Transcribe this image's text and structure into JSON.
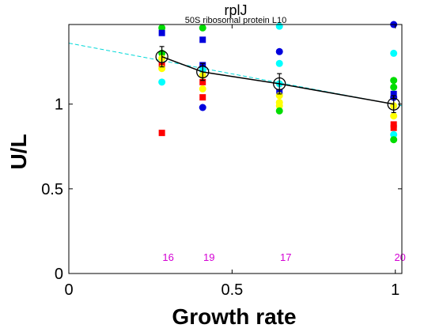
{
  "chart_data": {
    "type": "scatter",
    "title": "rplJ",
    "subtitle": "50S ribosomal protein L10",
    "xlabel": "Growth rate",
    "ylabel": "U/L",
    "xlim": [
      0,
      1.02
    ],
    "ylim": [
      0,
      1.47
    ],
    "x_ticks": [
      {
        "value": 0,
        "label": "0"
      },
      {
        "value": 0.5,
        "label": "0.5"
      },
      {
        "value": 1,
        "label": "1"
      }
    ],
    "y_ticks": [
      {
        "value": 0,
        "label": "0"
      },
      {
        "value": 0.5,
        "label": "0.5"
      },
      {
        "value": 1,
        "label": "1"
      }
    ],
    "grid": false,
    "colors": {
      "red": "#ff0000",
      "blue": "#0000dd",
      "green": "#00dd00",
      "cyan": "#00ffff",
      "yellow": "#ffff00",
      "magenta": "#d400d4",
      "trend": "#00d8d8",
      "mean_line": "#000000"
    },
    "points": [
      {
        "x": 0.285,
        "y": 1.45,
        "color": "green",
        "shape": "circle"
      },
      {
        "x": 0.285,
        "y": 1.42,
        "color": "blue",
        "shape": "square"
      },
      {
        "x": 0.285,
        "y": 1.3,
        "color": "green",
        "shape": "circle"
      },
      {
        "x": 0.285,
        "y": 1.27,
        "color": "yellow",
        "shape": "circle"
      },
      {
        "x": 0.285,
        "y": 1.23,
        "color": "red",
        "shape": "square"
      },
      {
        "x": 0.285,
        "y": 1.21,
        "color": "yellow",
        "shape": "circle"
      },
      {
        "x": 0.285,
        "y": 1.13,
        "color": "cyan",
        "shape": "circle"
      },
      {
        "x": 0.285,
        "y": 0.83,
        "color": "red",
        "shape": "square"
      },
      {
        "x": 0.41,
        "y": 1.45,
        "color": "green",
        "shape": "circle"
      },
      {
        "x": 0.41,
        "y": 1.38,
        "color": "blue",
        "shape": "square"
      },
      {
        "x": 0.41,
        "y": 1.23,
        "color": "blue",
        "shape": "square"
      },
      {
        "x": 0.41,
        "y": 1.2,
        "color": "cyan",
        "shape": "circle"
      },
      {
        "x": 0.41,
        "y": 1.17,
        "color": "yellow",
        "shape": "circle"
      },
      {
        "x": 0.41,
        "y": 1.13,
        "color": "red",
        "shape": "square"
      },
      {
        "x": 0.41,
        "y": 1.09,
        "color": "yellow",
        "shape": "circle"
      },
      {
        "x": 0.41,
        "y": 1.04,
        "color": "red",
        "shape": "square"
      },
      {
        "x": 0.41,
        "y": 0.98,
        "color": "blue",
        "shape": "circle"
      },
      {
        "x": 0.645,
        "y": 1.46,
        "color": "cyan",
        "shape": "circle"
      },
      {
        "x": 0.645,
        "y": 1.31,
        "color": "blue",
        "shape": "circle"
      },
      {
        "x": 0.645,
        "y": 1.24,
        "color": "cyan",
        "shape": "circle"
      },
      {
        "x": 0.645,
        "y": 1.12,
        "color": "cyan",
        "shape": "circle"
      },
      {
        "x": 0.645,
        "y": 1.07,
        "color": "blue",
        "shape": "square"
      },
      {
        "x": 0.645,
        "y": 1.05,
        "color": "yellow",
        "shape": "circle"
      },
      {
        "x": 0.645,
        "y": 1.01,
        "color": "yellow",
        "shape": "circle"
      },
      {
        "x": 0.645,
        "y": 0.99,
        "color": "yellow",
        "shape": "circle"
      },
      {
        "x": 0.645,
        "y": 0.96,
        "color": "green",
        "shape": "circle"
      },
      {
        "x": 0.995,
        "y": 1.47,
        "color": "blue",
        "shape": "circle"
      },
      {
        "x": 0.995,
        "y": 1.3,
        "color": "cyan",
        "shape": "circle"
      },
      {
        "x": 0.995,
        "y": 1.14,
        "color": "green",
        "shape": "circle"
      },
      {
        "x": 0.995,
        "y": 1.1,
        "color": "green",
        "shape": "circle"
      },
      {
        "x": 0.995,
        "y": 1.06,
        "color": "blue",
        "shape": "square"
      },
      {
        "x": 0.995,
        "y": 1.04,
        "color": "blue",
        "shape": "circle"
      },
      {
        "x": 0.995,
        "y": 0.99,
        "color": "yellow",
        "shape": "circle"
      },
      {
        "x": 0.995,
        "y": 0.93,
        "color": "yellow",
        "shape": "circle"
      },
      {
        "x": 0.995,
        "y": 0.88,
        "color": "red",
        "shape": "square"
      },
      {
        "x": 0.995,
        "y": 0.86,
        "color": "red",
        "shape": "square"
      },
      {
        "x": 0.995,
        "y": 0.82,
        "color": "cyan",
        "shape": "circle"
      },
      {
        "x": 0.995,
        "y": 0.79,
        "color": "green",
        "shape": "circle"
      }
    ],
    "means": [
      {
        "x": 0.285,
        "y": 1.28,
        "err": 0.06
      },
      {
        "x": 0.41,
        "y": 1.19,
        "err": 0.05
      },
      {
        "x": 0.645,
        "y": 1.12,
        "err": 0.06
      },
      {
        "x": 0.995,
        "y": 1.0,
        "err": 0.05
      }
    ],
    "trend_line": {
      "x": [
        0,
        1.02
      ],
      "y": [
        1.36,
        0.99
      ]
    },
    "counts": [
      {
        "x": 0.285,
        "label": "16"
      },
      {
        "x": 0.41,
        "label": "19"
      },
      {
        "x": 0.645,
        "label": "17"
      },
      {
        "x": 0.995,
        "label": "20"
      }
    ]
  }
}
